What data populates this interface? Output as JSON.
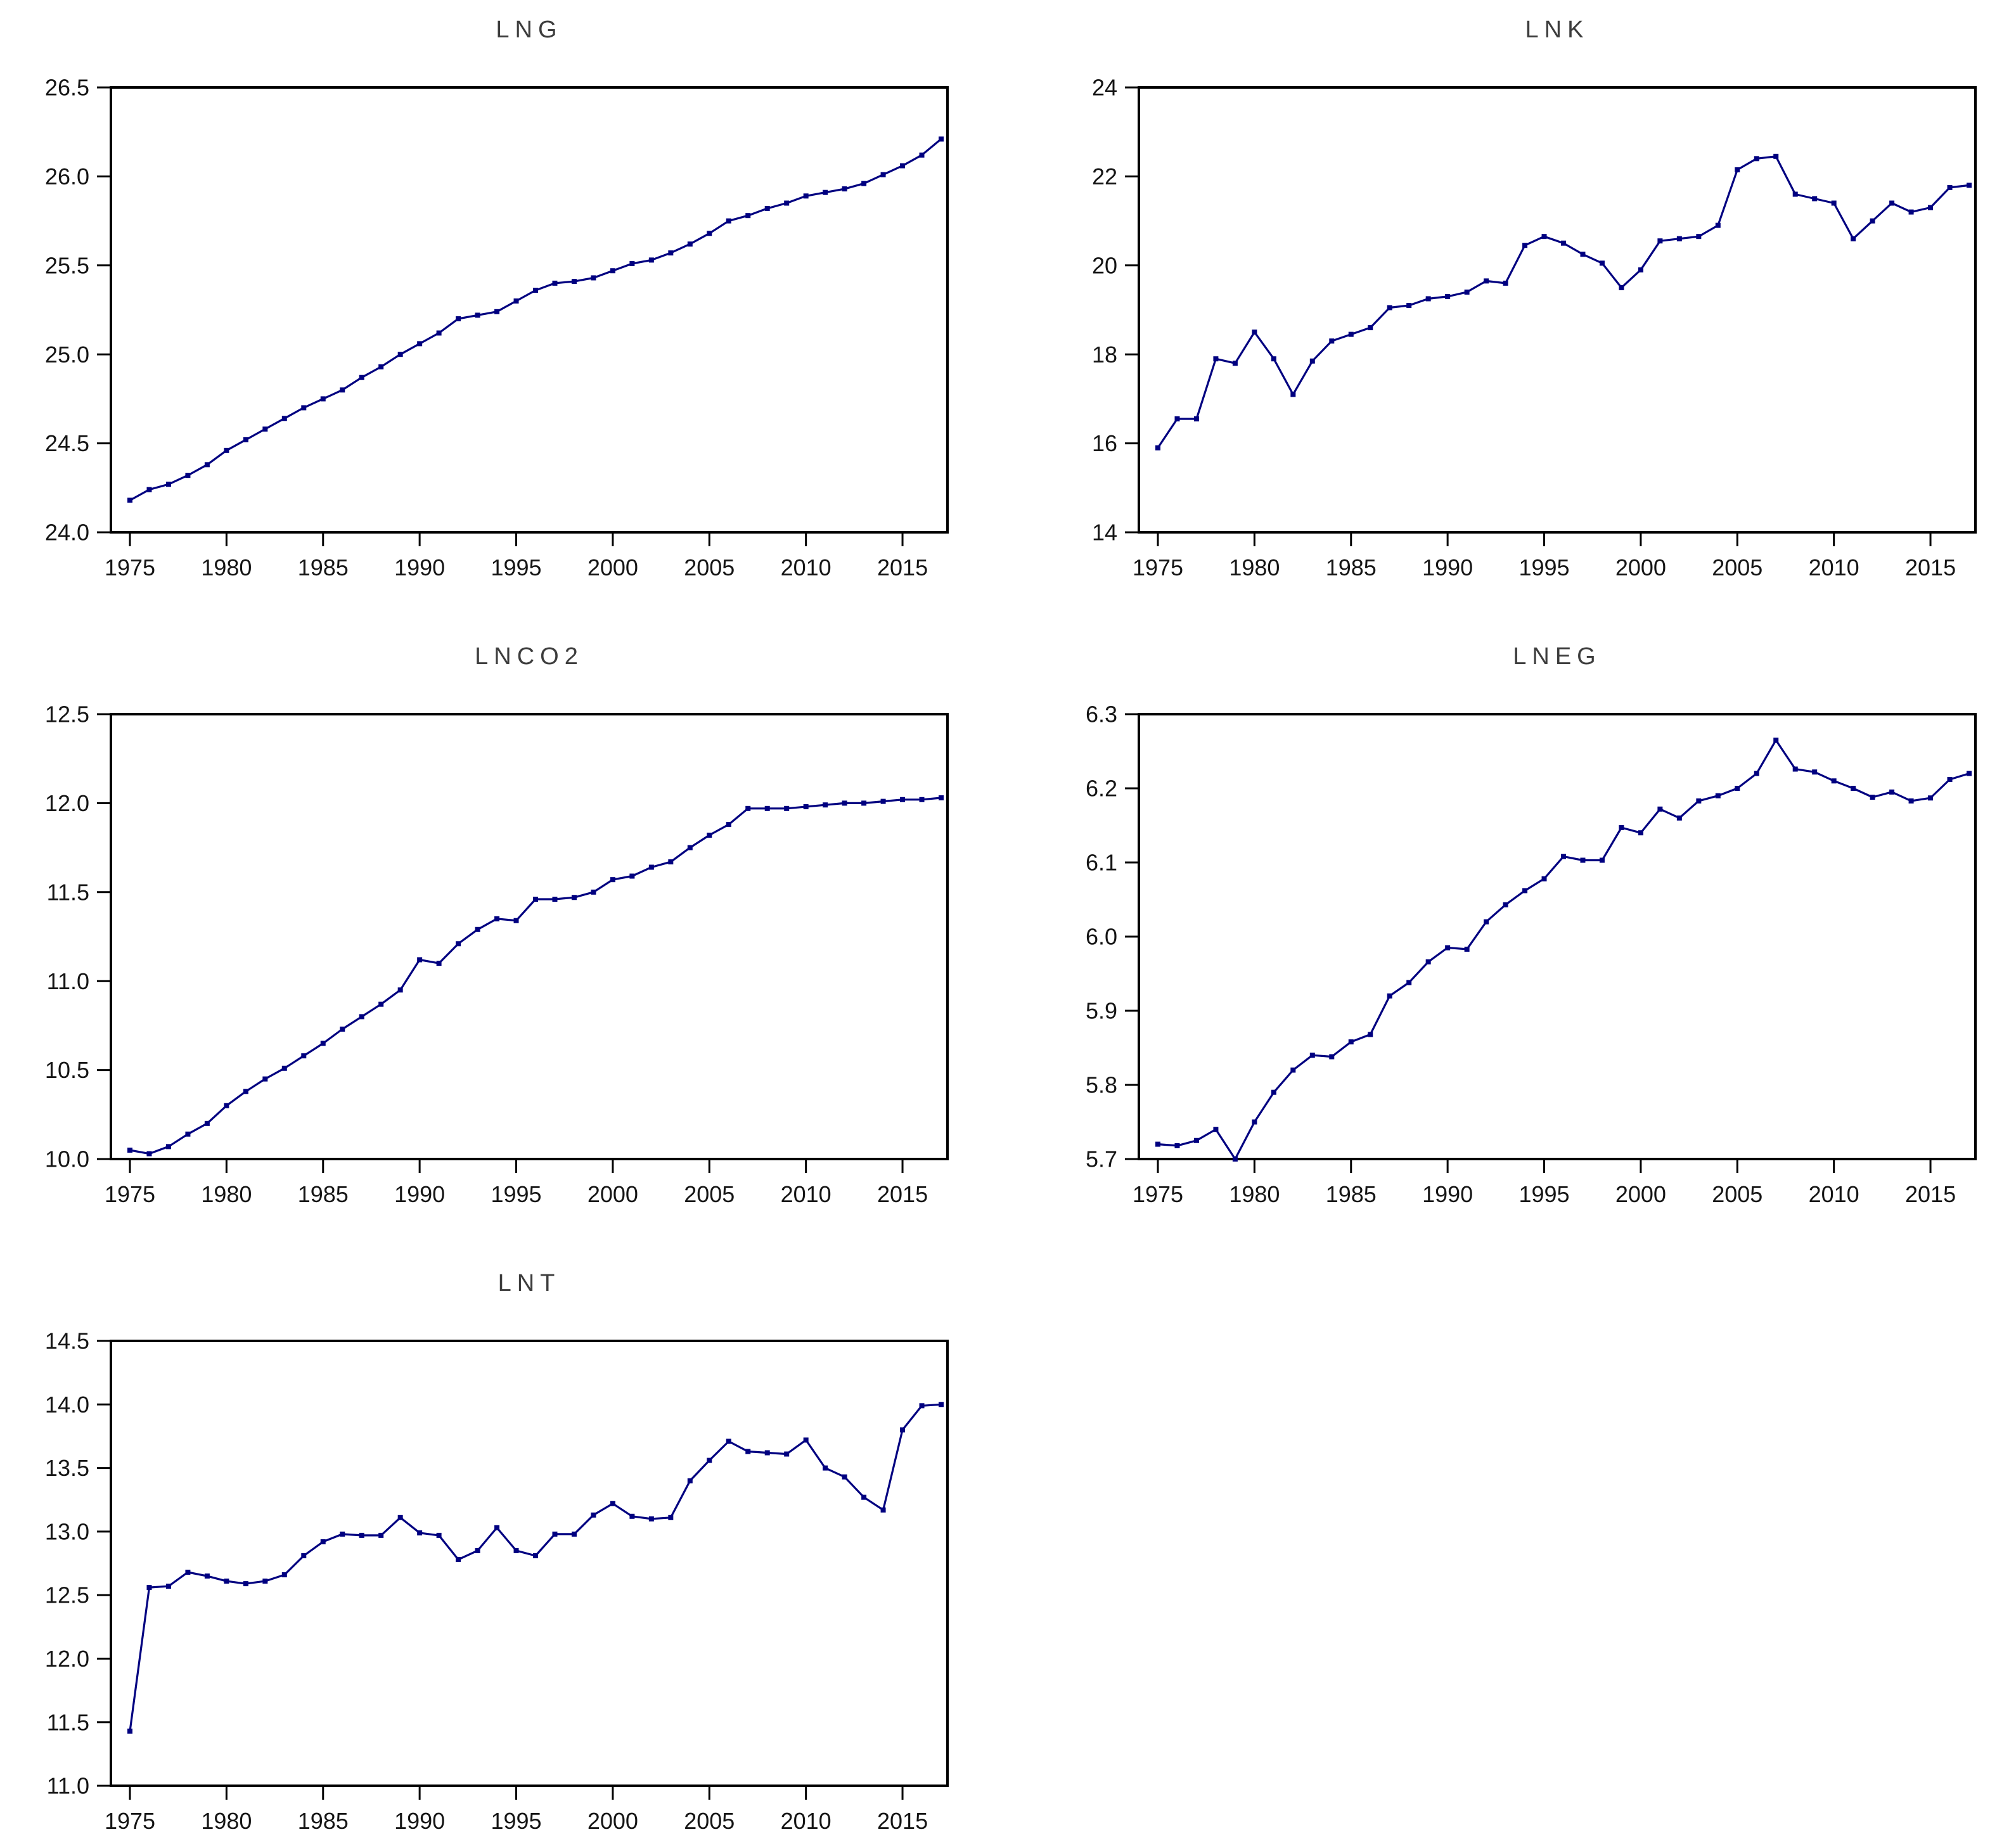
{
  "figure": {
    "description": "Five-panel annual time series figure (1975-2017), navy line with square markers, white background, black axes",
    "panel_count": 5
  },
  "style": {
    "line_color": "#000080",
    "marker_shape": "square",
    "marker_size": 8,
    "axis_color": "#000000",
    "tick_label_color": "#151515",
    "title_color": "#3d3d3d",
    "background": "#ffffff",
    "grid": "off",
    "legend": "none"
  },
  "chart_data": {
    "x_years": [
      1975,
      1976,
      1977,
      1978,
      1979,
      1980,
      1981,
      1982,
      1983,
      1984,
      1985,
      1986,
      1987,
      1988,
      1989,
      1990,
      1991,
      1992,
      1993,
      1994,
      1995,
      1996,
      1997,
      1998,
      1999,
      2000,
      2001,
      2002,
      2003,
      2004,
      2005,
      2006,
      2007,
      2008,
      2009,
      2010,
      2011,
      2012,
      2013,
      2014,
      2015,
      2016,
      2017
    ],
    "x_tick_values": [
      1975,
      1980,
      1985,
      1990,
      1995,
      2000,
      2005,
      2010,
      2015
    ],
    "x_tick_labels": [
      "1975",
      "1980",
      "1985",
      "1990",
      "1995",
      "2000",
      "2005",
      "2010",
      "2015"
    ],
    "charts": [
      {
        "type": "line",
        "title": "LNG",
        "grid_position": {
          "row": 0,
          "col": 0
        },
        "ylim": [
          24.0,
          26.5
        ],
        "ytick_values": [
          24.0,
          24.5,
          25.0,
          25.5,
          26.0,
          26.5
        ],
        "ytick_labels": [
          "24.0",
          "24.5",
          "25.0",
          "25.5",
          "26.0",
          "26.5"
        ],
        "values": [
          24.18,
          24.24,
          24.27,
          24.32,
          24.38,
          24.46,
          24.52,
          24.58,
          24.64,
          24.7,
          24.75,
          24.8,
          24.87,
          24.93,
          25.0,
          25.06,
          25.12,
          25.2,
          25.22,
          25.24,
          25.3,
          25.36,
          25.4,
          25.41,
          25.43,
          25.47,
          25.51,
          25.53,
          25.57,
          25.62,
          25.68,
          25.75,
          25.78,
          25.82,
          25.85,
          25.89,
          25.91,
          25.93,
          25.96,
          26.01,
          26.06,
          26.12,
          26.21
        ]
      },
      {
        "type": "line",
        "title": "LNK",
        "grid_position": {
          "row": 0,
          "col": 1
        },
        "ylim": [
          14,
          24
        ],
        "ytick_values": [
          14,
          16,
          18,
          20,
          22,
          24
        ],
        "ytick_labels": [
          "14",
          "16",
          "18",
          "20",
          "22",
          "24"
        ],
        "values": [
          15.9,
          16.55,
          16.55,
          17.9,
          17.8,
          18.5,
          17.9,
          17.1,
          17.85,
          18.3,
          18.45,
          18.6,
          19.05,
          19.1,
          19.25,
          19.3,
          19.4,
          19.65,
          19.6,
          20.45,
          20.65,
          20.5,
          20.25,
          20.05,
          19.5,
          19.9,
          20.55,
          20.6,
          20.65,
          20.9,
          22.15,
          22.4,
          22.45,
          21.6,
          21.5,
          21.4,
          20.6,
          21.0,
          21.4,
          21.2,
          21.3,
          21.75,
          21.8
        ]
      },
      {
        "type": "line",
        "title": "LNCO2",
        "grid_position": {
          "row": 1,
          "col": 0
        },
        "ylim": [
          10.0,
          12.5
        ],
        "ytick_values": [
          10.0,
          10.5,
          11.0,
          11.5,
          12.0,
          12.5
        ],
        "ytick_labels": [
          "10.0",
          "10.5",
          "11.0",
          "11.5",
          "12.0",
          "12.5"
        ],
        "values": [
          10.05,
          10.03,
          10.07,
          10.14,
          10.2,
          10.3,
          10.38,
          10.45,
          10.51,
          10.58,
          10.65,
          10.73,
          10.8,
          10.87,
          10.95,
          11.12,
          11.1,
          11.21,
          11.29,
          11.35,
          11.34,
          11.46,
          11.46,
          11.47,
          11.5,
          11.57,
          11.59,
          11.64,
          11.67,
          11.75,
          11.82,
          11.88,
          11.97,
          11.97,
          11.97,
          11.98,
          11.99,
          12.0,
          12.0,
          12.01,
          12.02,
          12.02,
          12.03
        ]
      },
      {
        "type": "line",
        "title": "LNEG",
        "grid_position": {
          "row": 1,
          "col": 1
        },
        "ylim": [
          5.7,
          6.3
        ],
        "ytick_values": [
          5.7,
          5.8,
          5.9,
          6.0,
          6.1,
          6.2,
          6.3
        ],
        "ytick_labels": [
          "5.7",
          "5.8",
          "5.9",
          "6.0",
          "6.1",
          "6.2",
          "6.3"
        ],
        "values": [
          5.72,
          5.718,
          5.725,
          5.74,
          5.7,
          5.75,
          5.79,
          5.82,
          5.84,
          5.838,
          5.858,
          5.868,
          5.92,
          5.938,
          5.966,
          5.985,
          5.983,
          6.02,
          6.043,
          6.062,
          6.078,
          6.108,
          6.103,
          6.103,
          6.147,
          6.14,
          6.172,
          6.16,
          6.183,
          6.19,
          6.2,
          6.22,
          6.265,
          6.226,
          6.222,
          6.21,
          6.2,
          6.188,
          6.195,
          6.183,
          6.187,
          6.212,
          6.22
        ]
      },
      {
        "type": "line",
        "title": "LNT",
        "grid_position": {
          "row": 2,
          "col": 0
        },
        "ylim": [
          11.0,
          14.5
        ],
        "ytick_values": [
          11.0,
          11.5,
          12.0,
          12.5,
          13.0,
          13.5,
          14.0,
          14.5
        ],
        "ytick_labels": [
          "11.0",
          "11.5",
          "12.0",
          "12.5",
          "13.0",
          "13.5",
          "14.0",
          "14.5"
        ],
        "values": [
          11.43,
          12.56,
          12.57,
          12.68,
          12.65,
          12.61,
          12.59,
          12.61,
          12.66,
          12.81,
          12.92,
          12.98,
          12.97,
          12.97,
          13.11,
          12.99,
          12.97,
          12.78,
          12.85,
          13.03,
          12.85,
          12.81,
          12.98,
          12.98,
          13.13,
          13.22,
          13.12,
          13.1,
          13.11,
          13.4,
          13.56,
          13.71,
          13.63,
          13.62,
          13.61,
          13.72,
          13.5,
          13.43,
          13.27,
          13.17,
          13.8,
          13.99,
          14.0
        ]
      }
    ]
  }
}
